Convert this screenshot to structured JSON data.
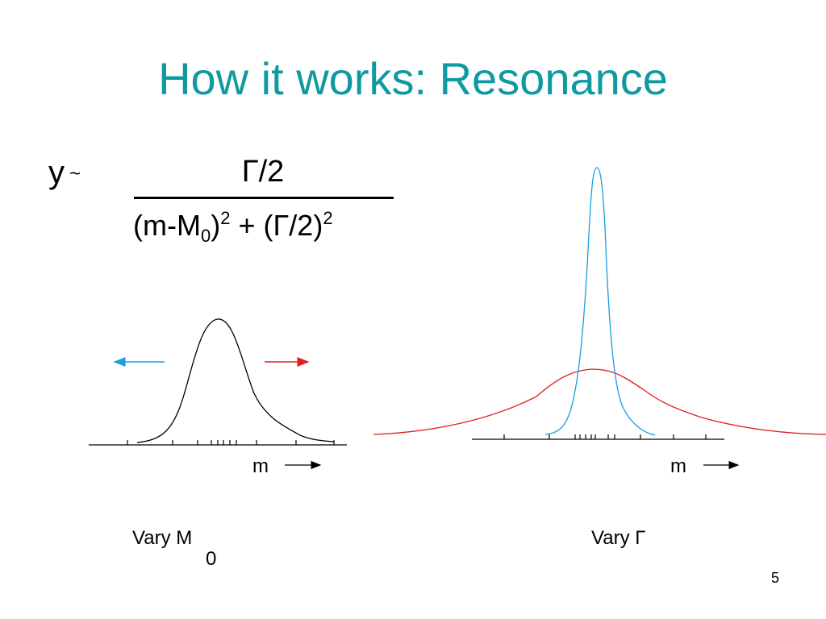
{
  "slide": {
    "title": "How it works: Resonance",
    "page_number": "5",
    "colors": {
      "title": "#0e9aa0",
      "blue": "#1a9ee0",
      "red": "#e02020",
      "black": "#000000"
    }
  },
  "formula": {
    "lhs": "y",
    "approx": "~",
    "numerator": "Γ/2",
    "den_part1": "(m-M",
    "den_sub": "0",
    "den_part2": ")",
    "den_sup1": "2",
    "den_part3": " + (Γ/2)",
    "den_sup2": "2"
  },
  "left_plot": {
    "axis_label": "m",
    "caption": "Vary M",
    "caption_sub": "0"
  },
  "right_plot": {
    "axis_label": "m",
    "caption": "Vary Γ"
  }
}
